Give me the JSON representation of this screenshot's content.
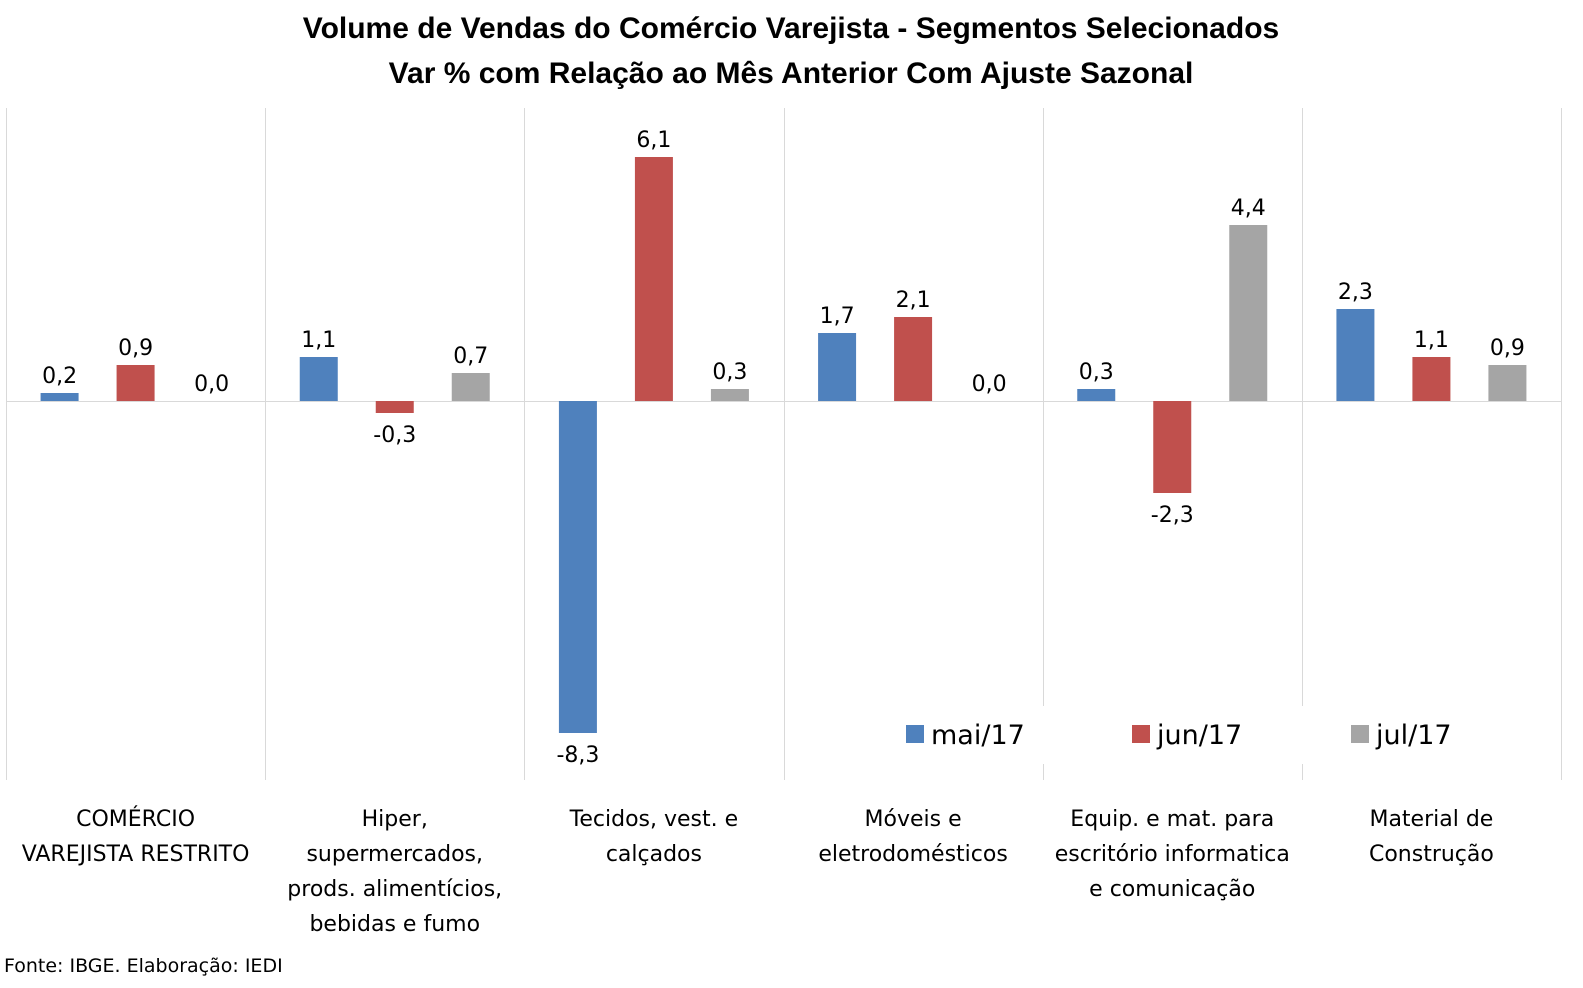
{
  "chart_data": {
    "type": "bar",
    "title": "Volume de Vendas do Comércio Varejista - Segmentos Selecionados",
    "subtitle": "Var % com Relação ao Mês Anterior Com Ajuste Sazonal",
    "categories": [
      [
        "COMÉRCIO",
        "VAREJISTA RESTRITO"
      ],
      [
        "Hiper,",
        "supermercados,",
        "prods. alimentícios,",
        "bebidas e fumo"
      ],
      [
        "Tecidos, vest. e",
        "calçados"
      ],
      [
        "Móveis e",
        "eletrodomésticos"
      ],
      [
        "Equip. e mat. para",
        "escritório informatica",
        "e comunicação"
      ],
      [
        "Material de",
        "Construção"
      ]
    ],
    "series": [
      {
        "name": "mai/17",
        "color": "#4f81bd",
        "values": [
          0.2,
          1.1,
          -8.3,
          1.7,
          0.3,
          2.3
        ],
        "labels": [
          "0,2",
          "1,1",
          "-8,3",
          "1,7",
          "0,3",
          "2,3"
        ]
      },
      {
        "name": "jun/17",
        "color": "#c0504d",
        "values": [
          0.9,
          -0.3,
          6.1,
          2.1,
          -2.3,
          1.1
        ],
        "labels": [
          "0,9",
          "-0,3",
          "6,1",
          "2,1",
          "-2,3",
          "1,1"
        ]
      },
      {
        "name": "jul/17",
        "color": "#a5a5a5",
        "values": [
          0.0,
          0.7,
          0.3,
          0.0,
          4.4,
          0.9
        ],
        "labels": [
          "0,0",
          "0,7",
          "0,3",
          "0,0",
          "4,4",
          "0,9"
        ]
      }
    ],
    "ylim": [
      -9.5,
      7.3
    ],
    "grid": "vertical category separators",
    "legend_position": "bottom-right",
    "source": "Fonte: IBGE. Elaboração: IEDI"
  }
}
